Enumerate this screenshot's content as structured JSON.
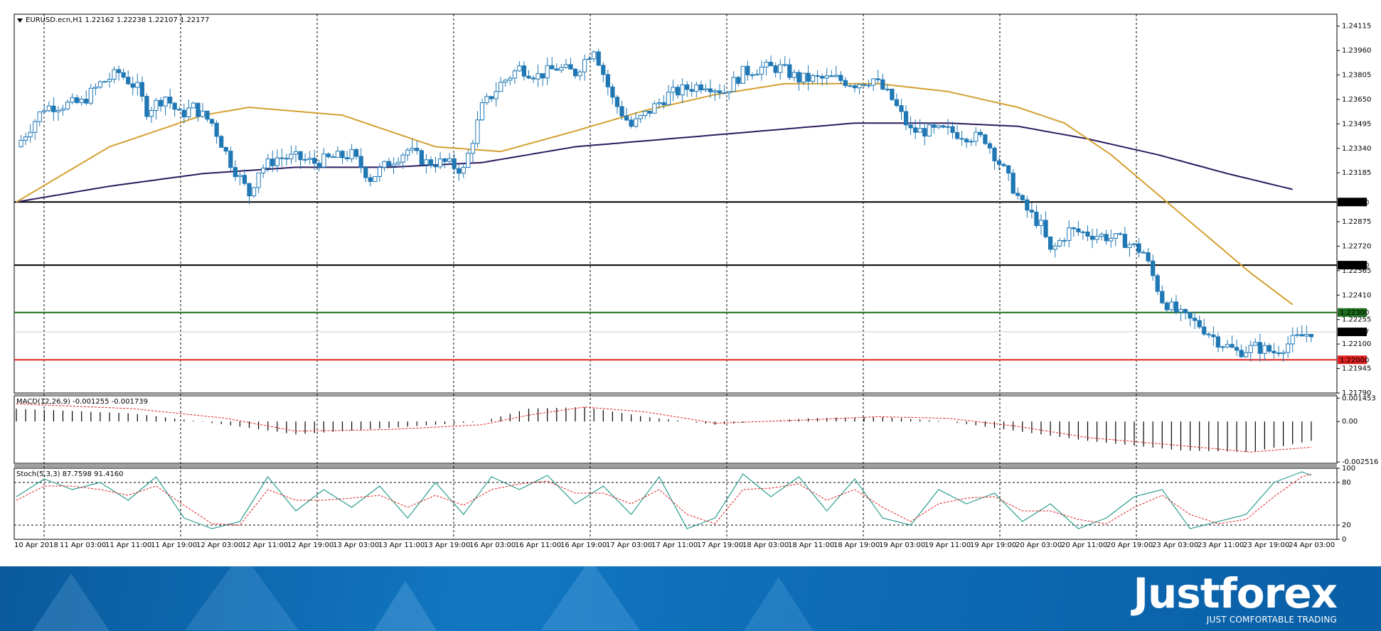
{
  "symbol_title": "EURUSD.ecn,H1  1.22162 1.22238 1.22107 1.22177",
  "macd_title": "MACD(12,26,9) -0.001255 -0.001739",
  "stoch_title": "Stoch(5,3,3) 87.7598 91.4160",
  "brand": {
    "name": "Justforex",
    "tagline": "JUST COMFORTABLE TRADING"
  },
  "colors": {
    "bull": "#1f77b4",
    "ma_fast": "#d4a030",
    "ma_slow": "#2e1a5e",
    "support_green": "#1b6e1b",
    "support_red": "#e02020",
    "level_black": "#000000",
    "current": "#c8c8c8"
  },
  "chart_data": [
    {
      "type": "candlestick",
      "symbol": "EURUSD.ecn",
      "timeframe": "H1",
      "ohlc_last": {
        "open": 1.22162,
        "high": 1.22238,
        "low": 1.22107,
        "close": 1.22177
      },
      "ylim": [
        1.2179,
        1.2419
      ],
      "y_ticks": [
        "1.24115",
        "1.23960",
        "1.23805",
        "1.23650",
        "1.23495",
        "1.23340",
        "1.23185",
        "1.22875",
        "1.22720",
        "1.22565",
        "1.22410",
        "1.22255",
        "1.22100",
        "1.21945",
        "1.21790"
      ],
      "x_ticks": [
        "10 Apr 2018",
        "11 Apr 03:00",
        "11 Apr 11:00",
        "11 Apr 19:00",
        "12 Apr 03:00",
        "12 Apr 11:00",
        "12 Apr 19:00",
        "13 Apr 03:00",
        "13 Apr 11:00",
        "13 Apr 19:00",
        "16 Apr 03:00",
        "16 Apr 11:00",
        "16 Apr 19:00",
        "17 Apr 03:00",
        "17 Apr 11:00",
        "17 Apr 19:00",
        "18 Apr 03:00",
        "18 Apr 11:00",
        "18 Apr 19:00",
        "19 Apr 03:00",
        "19 Apr 11:00",
        "19 Apr 19:00",
        "20 Apr 03:00",
        "20 Apr 11:00",
        "20 Apr 19:00",
        "23 Apr 03:00",
        "23 Apr 11:00",
        "23 Apr 19:00",
        "24 Apr 03:00"
      ],
      "horizontal_levels": [
        {
          "value": 1.23,
          "label": "1.23000",
          "color": "#000000"
        },
        {
          "value": 1.226,
          "label": "1.22600",
          "color": "#000000"
        },
        {
          "value": 1.223,
          "label": "1.22300",
          "color": "#1b6e1b"
        },
        {
          "value": 1.22177,
          "label": "1.22177",
          "color": "#c8c8c8"
        },
        {
          "value": 1.22,
          "label": "1.22000",
          "color": "#e02020"
        }
      ],
      "close_path": [
        [
          0,
          1.2335
        ],
        [
          6,
          1.236
        ],
        [
          14,
          1.2363
        ],
        [
          18,
          1.2375
        ],
        [
          22,
          1.2382
        ],
        [
          26,
          1.2372
        ],
        [
          28,
          1.2358
        ],
        [
          32,
          1.2367
        ],
        [
          35,
          1.2355
        ],
        [
          38,
          1.236
        ],
        [
          42,
          1.235
        ],
        [
          46,
          1.2325
        ],
        [
          50,
          1.2305
        ],
        [
          52,
          1.232
        ],
        [
          56,
          1.2328
        ],
        [
          60,
          1.2328
        ],
        [
          64,
          1.2325
        ],
        [
          68,
          1.2328
        ],
        [
          72,
          1.233
        ],
        [
          76,
          1.2315
        ],
        [
          80,
          1.2325
        ],
        [
          84,
          1.2333
        ],
        [
          88,
          1.2325
        ],
        [
          92,
          1.2325
        ],
        [
          96,
          1.232
        ],
        [
          100,
          1.236
        ],
        [
          104,
          1.2375
        ],
        [
          108,
          1.2385
        ],
        [
          112,
          1.238
        ],
        [
          116,
          1.2385
        ],
        [
          120,
          1.2382
        ],
        [
          124,
          1.2398
        ],
        [
          128,
          1.2365
        ],
        [
          132,
          1.2348
        ],
        [
          136,
          1.2358
        ],
        [
          140,
          1.2368
        ],
        [
          144,
          1.2372
        ],
        [
          148,
          1.2375
        ],
        [
          152,
          1.237
        ],
        [
          156,
          1.2382
        ],
        [
          160,
          1.2385
        ],
        [
          164,
          1.2385
        ],
        [
          168,
          1.2378
        ],
        [
          172,
          1.2378
        ],
        [
          176,
          1.2378
        ],
        [
          180,
          1.2375
        ],
        [
          184,
          1.2378
        ],
        [
          188,
          1.2365
        ],
        [
          192,
          1.2345
        ],
        [
          196,
          1.2345
        ],
        [
          200,
          1.2345
        ],
        [
          204,
          1.2342
        ],
        [
          208,
          1.234
        ],
        [
          212,
          1.232
        ],
        [
          216,
          1.2298
        ],
        [
          220,
          1.2285
        ],
        [
          222,
          1.2268
        ],
        [
          226,
          1.2282
        ],
        [
          230,
          1.228
        ],
        [
          234,
          1.2278
        ],
        [
          238,
          1.2275
        ],
        [
          242,
          1.2268
        ],
        [
          246,
          1.2238
        ],
        [
          250,
          1.2228
        ],
        [
          254,
          1.2222
        ],
        [
          258,
          1.2212
        ],
        [
          262,
          1.2205
        ],
        [
          266,
          1.2208
        ],
        [
          270,
          1.2205
        ],
        [
          274,
          1.2212
        ],
        [
          278,
          1.2218
        ]
      ],
      "ma_fast_path": [
        [
          0,
          1.23
        ],
        [
          20,
          1.2335
        ],
        [
          40,
          1.2355
        ],
        [
          50,
          1.236
        ],
        [
          70,
          1.2355
        ],
        [
          90,
          1.2335
        ],
        [
          104,
          1.2332
        ],
        [
          120,
          1.2345
        ],
        [
          135,
          1.2358
        ],
        [
          150,
          1.2368
        ],
        [
          165,
          1.2375
        ],
        [
          185,
          1.2375
        ],
        [
          200,
          1.237
        ],
        [
          215,
          1.236
        ],
        [
          225,
          1.235
        ],
        [
          235,
          1.233
        ],
        [
          245,
          1.2305
        ],
        [
          255,
          1.228
        ],
        [
          265,
          1.2255
        ],
        [
          274,
          1.2235
        ]
      ],
      "ma_slow_path": [
        [
          0,
          1.23
        ],
        [
          20,
          1.231
        ],
        [
          40,
          1.2318
        ],
        [
          60,
          1.2322
        ],
        [
          80,
          1.2322
        ],
        [
          100,
          1.2325
        ],
        [
          120,
          1.2335
        ],
        [
          140,
          1.234
        ],
        [
          160,
          1.2345
        ],
        [
          180,
          1.235
        ],
        [
          200,
          1.235
        ],
        [
          215,
          1.2348
        ],
        [
          230,
          1.234
        ],
        [
          245,
          1.233
        ],
        [
          260,
          1.2318
        ],
        [
          274,
          1.2308
        ]
      ]
    },
    {
      "type": "histogram",
      "name": "MACD(12,26,9)",
      "macd": -0.001255,
      "signal": -0.001739,
      "y_ticks": [
        "0.001453",
        "0.00",
        "-0.002516"
      ],
      "ylim": [
        -0.0026,
        0.0016
      ],
      "hist_path": [
        [
          0,
          0.0008
        ],
        [
          25,
          0.0005
        ],
        [
          45,
          -0.0002
        ],
        [
          60,
          -0.0008
        ],
        [
          80,
          -0.0004
        ],
        [
          100,
          0.0
        ],
        [
          110,
          0.0008
        ],
        [
          122,
          0.0009
        ],
        [
          135,
          0.0003
        ],
        [
          150,
          -0.0002
        ],
        [
          170,
          0.0002
        ],
        [
          185,
          0.0003
        ],
        [
          200,
          0.0
        ],
        [
          215,
          -0.0006
        ],
        [
          230,
          -0.0012
        ],
        [
          250,
          -0.0018
        ],
        [
          265,
          -0.0019
        ],
        [
          278,
          -0.0012
        ]
      ],
      "signal_path": [
        [
          0,
          0.0011
        ],
        [
          25,
          0.0008
        ],
        [
          45,
          0.0002
        ],
        [
          60,
          -0.0006
        ],
        [
          80,
          -0.0005
        ],
        [
          100,
          -0.0002
        ],
        [
          110,
          0.0004
        ],
        [
          122,
          0.0009
        ],
        [
          135,
          0.0006
        ],
        [
          150,
          -0.0001
        ],
        [
          170,
          0.0001
        ],
        [
          185,
          0.0003
        ],
        [
          200,
          0.0002
        ],
        [
          215,
          -0.0003
        ],
        [
          230,
          -0.001
        ],
        [
          250,
          -0.0015
        ],
        [
          265,
          -0.0019
        ],
        [
          278,
          -0.0016
        ]
      ]
    },
    {
      "type": "line",
      "name": "Stoch(5,3,3)",
      "main": 87.7598,
      "signal": 91.416,
      "y_ticks": [
        "100",
        "80",
        "20",
        "0"
      ],
      "ylim": [
        0,
        100
      ],
      "levels": [
        80,
        20
      ],
      "main_path": [
        [
          0,
          60
        ],
        [
          6,
          85
        ],
        [
          12,
          70
        ],
        [
          18,
          80
        ],
        [
          24,
          55
        ],
        [
          30,
          88
        ],
        [
          36,
          30
        ],
        [
          42,
          15
        ],
        [
          48,
          25
        ],
        [
          54,
          88
        ],
        [
          60,
          40
        ],
        [
          66,
          70
        ],
        [
          72,
          45
        ],
        [
          78,
          75
        ],
        [
          84,
          30
        ],
        [
          90,
          80
        ],
        [
          96,
          35
        ],
        [
          102,
          88
        ],
        [
          108,
          70
        ],
        [
          114,
          90
        ],
        [
          120,
          50
        ],
        [
          126,
          75
        ],
        [
          132,
          35
        ],
        [
          138,
          88
        ],
        [
          144,
          15
        ],
        [
          150,
          30
        ],
        [
          156,
          92
        ],
        [
          162,
          60
        ],
        [
          168,
          88
        ],
        [
          174,
          40
        ],
        [
          180,
          85
        ],
        [
          186,
          30
        ],
        [
          192,
          20
        ],
        [
          198,
          70
        ],
        [
          204,
          50
        ],
        [
          210,
          65
        ],
        [
          216,
          25
        ],
        [
          222,
          50
        ],
        [
          228,
          15
        ],
        [
          234,
          30
        ],
        [
          240,
          60
        ],
        [
          246,
          70
        ],
        [
          252,
          15
        ],
        [
          258,
          25
        ],
        [
          264,
          35
        ],
        [
          270,
          80
        ],
        [
          276,
          95
        ],
        [
          278,
          90
        ]
      ],
      "signal_path": [
        [
          0,
          55
        ],
        [
          6,
          75
        ],
        [
          12,
          75
        ],
        [
          18,
          70
        ],
        [
          24,
          62
        ],
        [
          30,
          75
        ],
        [
          36,
          48
        ],
        [
          42,
          22
        ],
        [
          48,
          20
        ],
        [
          54,
          70
        ],
        [
          60,
          55
        ],
        [
          66,
          55
        ],
        [
          72,
          58
        ],
        [
          78,
          62
        ],
        [
          84,
          45
        ],
        [
          90,
          62
        ],
        [
          96,
          48
        ],
        [
          102,
          70
        ],
        [
          108,
          78
        ],
        [
          114,
          82
        ],
        [
          120,
          65
        ],
        [
          126,
          65
        ],
        [
          132,
          50
        ],
        [
          138,
          70
        ],
        [
          144,
          35
        ],
        [
          150,
          22
        ],
        [
          156,
          70
        ],
        [
          162,
          72
        ],
        [
          168,
          78
        ],
        [
          174,
          55
        ],
        [
          180,
          70
        ],
        [
          186,
          45
        ],
        [
          192,
          25
        ],
        [
          198,
          50
        ],
        [
          204,
          58
        ],
        [
          210,
          60
        ],
        [
          216,
          40
        ],
        [
          222,
          40
        ],
        [
          228,
          28
        ],
        [
          234,
          22
        ],
        [
          240,
          45
        ],
        [
          246,
          62
        ],
        [
          252,
          35
        ],
        [
          258,
          22
        ],
        [
          264,
          28
        ],
        [
          270,
          60
        ],
        [
          276,
          88
        ],
        [
          278,
          92
        ]
      ]
    }
  ]
}
